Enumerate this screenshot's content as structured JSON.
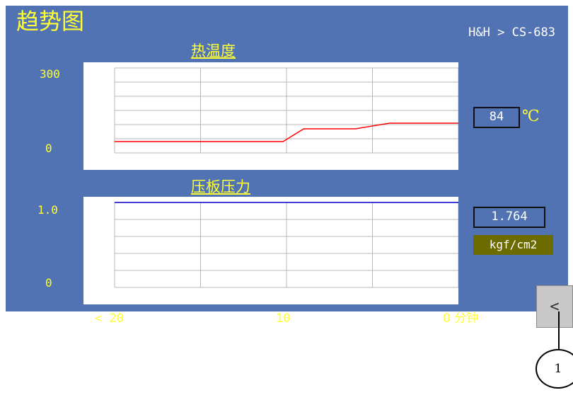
{
  "screen": {
    "title": "趋势图",
    "breadcrumb": "H&H > CS-683"
  },
  "temperature": {
    "title": "热温度",
    "y_max": "300",
    "y_min": "0",
    "value": "84",
    "unit": "℃"
  },
  "pressure": {
    "title": "压板压力",
    "y_max": "1.0",
    "y_min": "0",
    "value": "1.764",
    "unit": "kgf/cm2"
  },
  "x_axis": {
    "left": "< 20",
    "mid": "10",
    "right": "0 分钟"
  },
  "back_button": {
    "label": "<"
  },
  "callout": {
    "label": "1"
  },
  "chart_data": [
    {
      "type": "line",
      "title": "热温度",
      "x": [
        20,
        10.2,
        9,
        6,
        4,
        0
      ],
      "ylim": [
        0,
        300
      ],
      "series": [
        {
          "values": [
            40,
            40,
            85,
            85,
            105,
            105
          ],
          "color": "#ff0000"
        }
      ]
    },
    {
      "type": "line",
      "title": "压板压力",
      "x": [
        20,
        0
      ],
      "ylim": [
        0,
        1.0
      ],
      "series": [
        {
          "values": [
            1.0,
            1.0
          ],
          "color": "#0000cc"
        }
      ]
    }
  ],
  "colors": {
    "screen_bg": "#5173b4",
    "label_yellow": "#ffff33",
    "temp_line": "#ff0000",
    "pressure_line": "#0000cc",
    "unit_badge": "#6b6b00"
  }
}
